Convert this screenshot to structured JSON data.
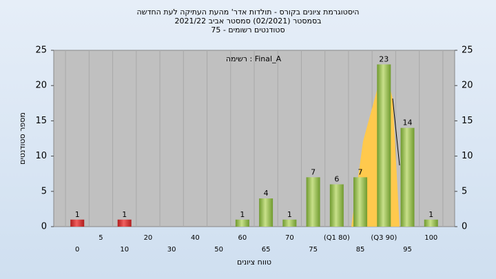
{
  "chart_data": {
    "type": "bar",
    "title": [
      "היסטוגרמת ציונים בקורס - תולדות אדר' מהעת העתיקה לעת החדשה",
      "בסמסטר (02/2021) סמסטר אביב 2021/22",
      "סטודנטים רשומים - 75"
    ],
    "annotation": "רשימה : Final_A",
    "y_label": "מספר סטודנטים",
    "x_label": "טווח ציונים",
    "categories": [
      "0",
      "5",
      "10",
      "20",
      "30",
      "40",
      "50",
      "60",
      "65",
      "70",
      "75",
      "(Q1 80)",
      "85",
      "(Q3 90)",
      "95",
      "100"
    ],
    "values": [
      1,
      0,
      1,
      0,
      0,
      0,
      0,
      1,
      4,
      1,
      7,
      6,
      7,
      23,
      14,
      1
    ],
    "colors": [
      "#d83232",
      "#d83232",
      "#d83232",
      "#d83232",
      "#d83232",
      "#8db648",
      "#8db648",
      "#8db648",
      "#8db648",
      "#8db648",
      "#8db648",
      "#8db648",
      "#8db648",
      "#8db648",
      "#8db648",
      "#8db648"
    ],
    "ylim": [
      0,
      25
    ],
    "yticks": [
      0,
      5,
      10,
      15,
      20,
      25
    ],
    "y2lim": [
      0,
      25
    ],
    "y2ticks": [
      0,
      5,
      10,
      15,
      20,
      25
    ]
  }
}
